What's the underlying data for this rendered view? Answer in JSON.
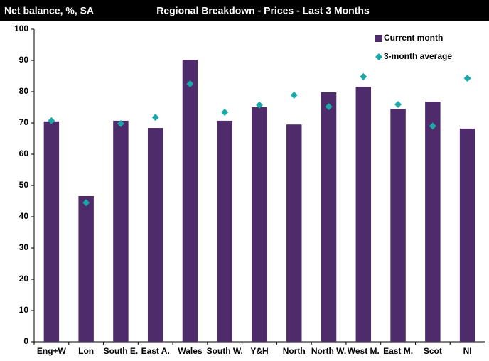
{
  "chart_data": {
    "type": "bar",
    "title": "Regional Breakdown - Prices - Last 3 Months",
    "subtitle": "Net balance, %, SA",
    "categories": [
      "Eng+W",
      "Lon",
      "South E.",
      "East A.",
      "Wales",
      "South W.",
      "Y&H",
      "North",
      "North W.",
      "West M.",
      "East M.",
      "Scot",
      "NI"
    ],
    "series": [
      {
        "name": "Current month",
        "type": "bar",
        "color": "#4e2c6c",
        "values": [
          70.5,
          46.6,
          70.7,
          68.4,
          90.2,
          70.7,
          75,
          69.5,
          79.8,
          81.6,
          74.5,
          76.8,
          68.2
        ]
      },
      {
        "name": "3-month average",
        "type": "scatter",
        "color": "#1aa8a8",
        "values": [
          70.7,
          44.5,
          69.8,
          71.8,
          82.5,
          73.4,
          75.7,
          78.9,
          75.2,
          84.8,
          75.9,
          69,
          84.3
        ]
      }
    ],
    "ylim": [
      0,
      100
    ],
    "yticks": [
      0,
      10,
      20,
      30,
      40,
      50,
      60,
      70,
      80,
      90,
      100
    ],
    "legend": "top-right"
  }
}
